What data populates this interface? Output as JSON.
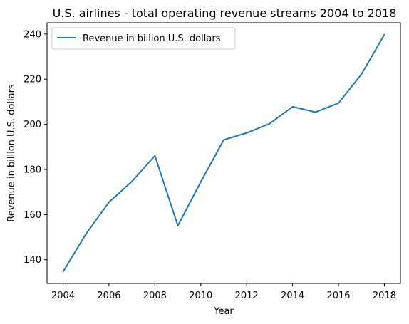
{
  "chart_data": {
    "type": "line",
    "title": "U.S. airlines - total operating revenue streams 2004 to 2018",
    "xlabel": "Year",
    "ylabel": "Revenue in billion U.S. dollars",
    "x": [
      2004,
      2005,
      2006,
      2007,
      2008,
      2009,
      2010,
      2011,
      2012,
      2013,
      2014,
      2015,
      2016,
      2017,
      2018
    ],
    "series": [
      {
        "name": "Revenue in billion U.S. dollars",
        "color": "#1f77b4",
        "values": [
          134.7,
          151.5,
          165.5,
          174.7,
          186.1,
          155.1,
          174.5,
          193.1,
          196.2,
          200.3,
          207.8,
          205.4,
          209.4,
          222.2,
          239.8
        ]
      }
    ],
    "xlim": [
      2003.3,
      2018.7
    ],
    "ylim": [
      129.5,
      245.0
    ],
    "xticks": [
      "2004",
      "2006",
      "2008",
      "2010",
      "2012",
      "2014",
      "2016",
      "2018"
    ],
    "yticks": [
      "140",
      "160",
      "180",
      "200",
      "220",
      "240"
    ],
    "legend": "top-left",
    "grid": false
  }
}
